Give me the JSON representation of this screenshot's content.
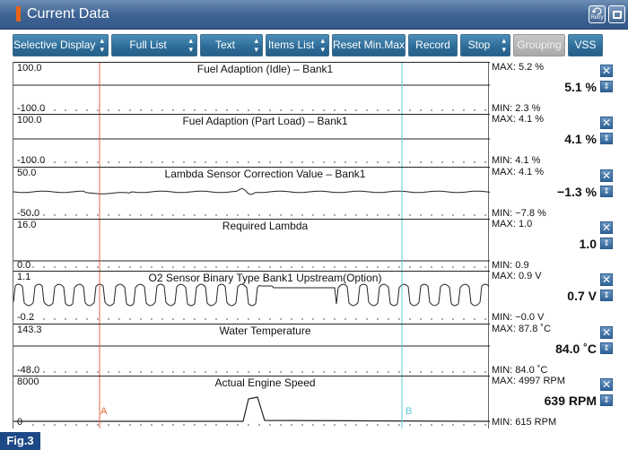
{
  "window": {
    "title": "Current Data",
    "retry_label": "Retry",
    "retry_icon": "retry-icon",
    "window_icon": "window-icon"
  },
  "toolbar": {
    "buttons": [
      {
        "label": "Selective Display",
        "dropdown": true
      },
      {
        "label": "Full List",
        "dropdown": true
      },
      {
        "label": "Text",
        "dropdown": true
      },
      {
        "label": "Items List",
        "dropdown": true
      },
      {
        "label": "Reset Min.Max",
        "dropdown": false
      },
      {
        "label": "Record",
        "dropdown": false
      },
      {
        "label": "Stop",
        "dropdown": true
      },
      {
        "label": "Grouping",
        "dropdown": false,
        "disabled": true
      },
      {
        "label": "VSS",
        "dropdown": false
      }
    ]
  },
  "markers": {
    "a": "A",
    "b": "B",
    "a_color": "#e8643c",
    "b_color": "#5bc8dc"
  },
  "graphs": [
    {
      "name": "Fuel Adaption (Idle) – Bank1",
      "axis_max": "100.0",
      "axis_min": "-100.0",
      "max": "MAX:   5.2 %",
      "min": "MIN:   2.3 %",
      "current": "5.1 %"
    },
    {
      "name": "Fuel Adaption (Part Load) – Bank1",
      "axis_max": "100.0",
      "axis_min": "-100.0",
      "max": "MAX:   4.1 %",
      "min": "MIN:   4.1 %",
      "current": "4.1 %"
    },
    {
      "name": "Lambda Sensor Correction Value – Bank1",
      "axis_max": "50.0",
      "axis_min": "-50.0",
      "max": "MAX:   4.1 %",
      "min": "MIN:  −7.8 %",
      "current": "−1.3 %"
    },
    {
      "name": "Required Lambda",
      "axis_max": "16.0",
      "axis_min": "0.0",
      "max": "MAX:   1.0",
      "min": "MIN:   0.9",
      "current": "1.0"
    },
    {
      "name": "O2 Sensor Binary Type Bank1 Upstream(Option)",
      "axis_max": "1.1",
      "axis_min": "-0.2",
      "max": "MAX:   0.9 V",
      "min": "MIN:  −0.0 V",
      "current": "0.7 V"
    },
    {
      "name": "Water Temperature",
      "axis_max": "143.3",
      "axis_min": "-48.0",
      "max": "MAX:  87.8 ˚C",
      "min": "MIN:  84.0 ˚C",
      "current": "84.0 ˚C"
    },
    {
      "name": "Actual Engine Speed",
      "axis_max": "8000",
      "axis_min": "0",
      "max": "MAX:  4997 RPM",
      "min": "MIN:   615 RPM",
      "current": "639 RPM"
    }
  ],
  "footer": {
    "fig_label": "Fig.3"
  },
  "icons": {
    "close": "close-icon",
    "scroll": "up-down-arrow-icon"
  },
  "colors": {
    "title_bar": "#3f6594",
    "button": "#2e6d99",
    "fig_badge": "#1d4a86"
  }
}
